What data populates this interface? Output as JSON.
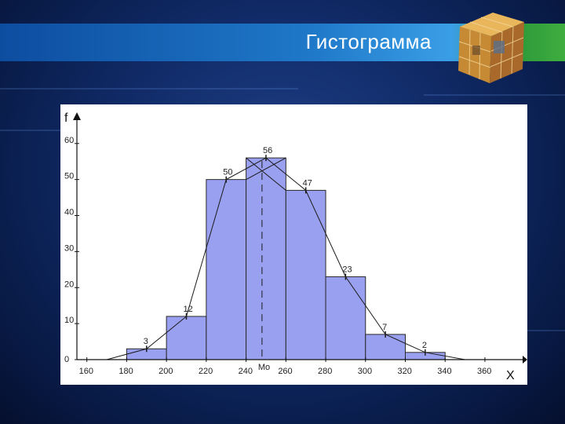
{
  "slide": {
    "title": "Гистограмма"
  },
  "chart_data": {
    "type": "bar",
    "title": "",
    "xlabel": "X",
    "ylabel": "f",
    "mode_label": "Mo",
    "x_ticks": [
      160,
      180,
      200,
      220,
      240,
      260,
      280,
      300,
      320,
      340,
      360
    ],
    "y_ticks": [
      0,
      10,
      20,
      30,
      40,
      50,
      60
    ],
    "xlim": [
      155,
      375
    ],
    "ylim": [
      0,
      63
    ],
    "bins": [
      {
        "from": 180,
        "to": 200,
        "value": 3
      },
      {
        "from": 200,
        "to": 220,
        "value": 12
      },
      {
        "from": 220,
        "to": 240,
        "value": 50
      },
      {
        "from": 240,
        "to": 260,
        "value": 56
      },
      {
        "from": 260,
        "to": 280,
        "value": 47
      },
      {
        "from": 280,
        "to": 300,
        "value": 23
      },
      {
        "from": 300,
        "to": 320,
        "value": 7
      },
      {
        "from": 320,
        "to": 340,
        "value": 2
      }
    ],
    "polygon": {
      "x": [
        170,
        190,
        210,
        230,
        250,
        270,
        290,
        310,
        330,
        350
      ],
      "y": [
        0,
        3,
        12,
        50,
        56,
        47,
        23,
        7,
        2,
        0
      ]
    },
    "mode_x": 248,
    "grid": false,
    "colors": {
      "bar_fill": "#9aa0f0",
      "bar_edge": "#2a2a2a",
      "line": "#1a1a1a"
    }
  }
}
